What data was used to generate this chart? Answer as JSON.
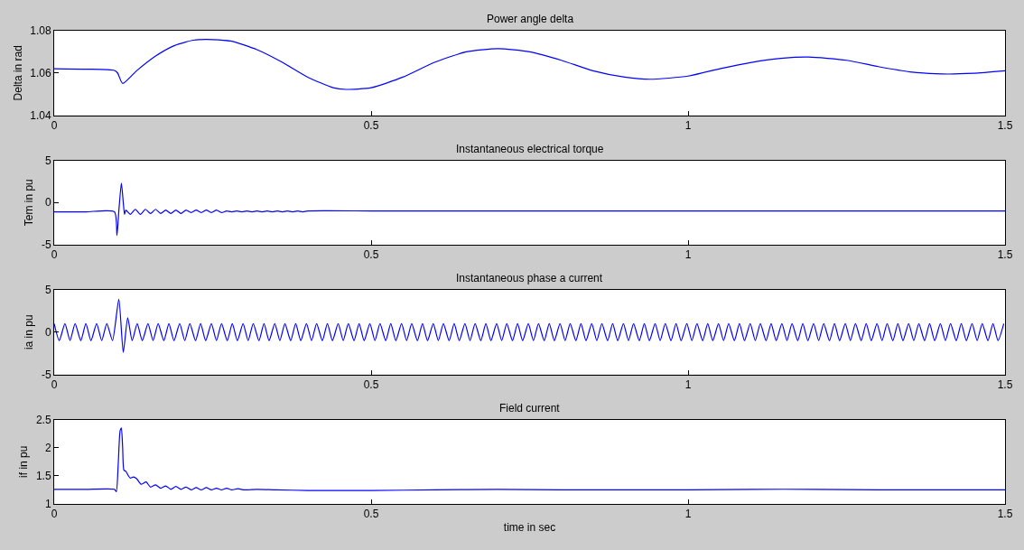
{
  "chart_data": [
    {
      "type": "line",
      "title": "Power angle delta",
      "ylabel": "Delta in rad",
      "xlim": [
        0,
        1.5
      ],
      "xticks": [
        0,
        0.5,
        1,
        1.5
      ],
      "ylim": [
        1.04,
        1.08
      ],
      "yticks": [
        1.04,
        1.06,
        1.08
      ],
      "series": [
        {
          "color": "#0000ff",
          "x": [
            0,
            0.05,
            0.095,
            0.1,
            0.108,
            0.13,
            0.16,
            0.19,
            0.22,
            0.25,
            0.28,
            0.32,
            0.36,
            0.4,
            0.44,
            0.46,
            0.5,
            0.55,
            0.6,
            0.65,
            0.7,
            0.75,
            0.8,
            0.85,
            0.9,
            0.94,
            1.0,
            1.05,
            1.1,
            1.15,
            1.19,
            1.25,
            1.3,
            1.35,
            1.4,
            1.45,
            1.5
          ],
          "values": [
            1.062,
            1.0618,
            1.0612,
            1.06,
            1.055,
            1.061,
            1.068,
            1.073,
            1.0755,
            1.0758,
            1.075,
            1.071,
            1.065,
            1.058,
            1.053,
            1.0522,
            1.053,
            1.058,
            1.065,
            1.07,
            1.0715,
            1.07,
            1.066,
            1.061,
            1.058,
            1.057,
            1.0585,
            1.062,
            1.065,
            1.067,
            1.0675,
            1.066,
            1.063,
            1.0605,
            1.0595,
            1.0598,
            1.061
          ]
        }
      ]
    },
    {
      "type": "line",
      "title": "Instantaneous electrical torque",
      "ylabel": "Tem in pu",
      "xlim": [
        0,
        1.5
      ],
      "xticks": [
        0,
        0.5,
        1,
        1.5
      ],
      "ylim": [
        -5,
        5
      ],
      "yticks": [
        -5,
        0,
        5
      ],
      "series": [
        {
          "color": "#0000ff",
          "x": [
            0,
            0.05,
            0.095,
            0.099,
            0.102,
            0.106,
            0.109,
            0.111,
            0.113,
            0.12,
            0.128,
            0.136,
            0.144,
            0.152,
            0.16,
            0.168,
            0.176,
            0.184,
            0.192,
            0.2,
            0.208,
            0.216,
            0.224,
            0.232,
            0.24,
            0.248,
            0.256,
            0.264,
            0.272,
            0.28,
            0.288,
            0.296,
            0.304,
            0.312,
            0.32,
            0.328,
            0.336,
            0.344,
            0.352,
            0.36,
            0.368,
            0.376,
            0.384,
            0.392,
            0.4,
            0.5,
            0.6,
            0.7,
            0.8,
            0.9,
            1.0,
            1.1,
            1.2,
            1.3,
            1.4,
            1.5
          ],
          "values": [
            -1.1,
            -1.1,
            -1.1,
            -3.9,
            -1,
            2.3,
            0,
            -1.4,
            -0.9,
            -1.4,
            -0.8,
            -1.4,
            -0.8,
            -1.3,
            -0.8,
            -1.3,
            -0.9,
            -1.3,
            -0.9,
            -1.3,
            -0.9,
            -1.2,
            -0.9,
            -1.2,
            -0.9,
            -1.2,
            -0.9,
            -1.2,
            -1,
            -1.1,
            -1,
            -1.1,
            -1,
            -1.1,
            -1,
            -1.1,
            -1,
            -1.1,
            -1,
            -1.1,
            -1,
            -1.1,
            -1,
            -1.1,
            -1,
            -1,
            -1,
            -1,
            -1,
            -1,
            -1,
            -1,
            -1,
            -1,
            -1,
            -1
          ]
        }
      ]
    },
    {
      "type": "line",
      "title": "Instantaneous phase a current",
      "ylabel": "ia in pu",
      "xlim": [
        0,
        1.5
      ],
      "xticks": [
        0,
        0.5,
        1,
        1.5
      ],
      "ylim": [
        -5,
        5
      ],
      "yticks": [
        -5,
        0,
        5
      ],
      "series": [
        {
          "color": "#0000ff",
          "x": [
            0,
            0.008,
            0.017,
            0.025,
            0.033,
            0.042,
            0.05,
            0.058,
            0.067,
            0.075,
            0.083,
            0.092,
            0.102,
            0.109,
            0.116,
            0.123,
            0.131,
            0.139,
            0.148,
            0.156,
            0.164,
            0.173,
            0.181,
            0.189,
            0.198,
            0.206,
            0.214,
            0.223,
            0.231,
            0.239,
            0.248,
            0.256,
            0.264,
            0.273,
            0.281,
            0.289,
            0.298,
            0.306,
            0.314,
            0.323,
            0.331,
            0.339,
            0.348,
            0.356,
            0.364,
            0.373,
            0.381,
            0.389,
            0.398,
            0.406,
            0.414,
            0.423,
            0.431,
            0.439,
            0.448,
            0.456,
            0.464,
            0.473,
            0.481,
            0.489,
            0.498,
            0.506,
            0.514,
            0.523,
            0.531,
            0.539,
            0.548,
            0.556,
            0.564,
            0.573,
            0.581,
            0.589,
            0.598,
            0.606,
            0.614,
            0.623,
            0.631,
            0.639,
            0.648,
            0.656,
            0.664,
            0.673,
            0.681,
            0.689,
            0.698,
            0.706,
            0.714,
            0.723,
            0.731,
            0.739,
            0.748,
            0.756,
            0.764,
            0.773,
            0.781,
            0.789,
            0.798,
            0.806,
            0.814,
            0.823,
            0.831,
            0.839,
            0.848,
            0.856,
            0.864,
            0.873,
            0.881,
            0.889,
            0.898,
            0.906,
            0.914,
            0.923,
            0.931,
            0.939,
            0.948,
            0.956,
            0.964,
            0.973,
            0.981,
            0.989,
            0.998,
            1.006,
            1.014,
            1.023,
            1.031,
            1.039,
            1.048,
            1.056,
            1.064,
            1.073,
            1.081,
            1.089,
            1.098,
            1.106,
            1.114,
            1.123,
            1.131,
            1.139,
            1.148,
            1.156,
            1.164,
            1.173,
            1.181,
            1.189,
            1.198,
            1.206,
            1.214,
            1.223,
            1.231,
            1.239,
            1.248,
            1.256,
            1.264,
            1.273,
            1.281,
            1.289,
            1.298,
            1.306,
            1.314,
            1.323,
            1.331,
            1.339,
            1.348,
            1.356,
            1.364,
            1.373,
            1.381,
            1.389,
            1.398,
            1.406,
            1.414,
            1.423,
            1.431,
            1.439,
            1.448,
            1.456,
            1.464,
            1.473,
            1.481,
            1.489,
            1.498
          ],
          "values": [
            1,
            -1,
            1,
            -1,
            1,
            -1,
            1,
            -1,
            1,
            -1,
            1,
            -1,
            3.9,
            -2.4,
            1.7,
            -1,
            1,
            -1,
            1,
            -1,
            1,
            -1,
            1,
            -1,
            1,
            -1,
            1,
            -1,
            1,
            -1,
            1,
            -1,
            1,
            -1,
            1,
            -1,
            1,
            -1,
            1,
            -1,
            1,
            -1,
            1,
            -1,
            1,
            -1,
            1,
            -1,
            1,
            -1,
            1,
            -1,
            1,
            -1,
            1,
            -1,
            1,
            -1,
            1,
            -1,
            1,
            -1,
            1,
            -1,
            1,
            -1,
            1,
            -1,
            1,
            -1,
            1,
            -1,
            1,
            -1,
            1,
            -1,
            1,
            -1,
            1,
            -1,
            1,
            -1,
            1,
            -1,
            1,
            -1,
            1,
            -1,
            1,
            -1,
            1,
            -1,
            1,
            -1,
            1,
            -1,
            1,
            -1,
            1,
            -1,
            1,
            -1,
            1,
            -1,
            1,
            -1,
            1,
            -1,
            1,
            -1,
            1,
            -1,
            1,
            -1,
            1,
            -1,
            1,
            -1,
            1,
            -1,
            1,
            -1,
            1,
            -1,
            1,
            -1,
            1,
            -1,
            1,
            -1,
            1,
            -1,
            1,
            -1,
            1,
            -1,
            1,
            -1,
            1,
            -1,
            1,
            -1,
            1,
            -1,
            1,
            -1,
            1,
            -1,
            1,
            -1,
            1,
            -1,
            1,
            -1,
            1,
            -1,
            1,
            -1,
            1,
            -1,
            1,
            -1,
            1,
            -1,
            1,
            -1,
            1,
            -1,
            1,
            -1,
            1,
            -1,
            1,
            -1,
            1,
            -1,
            1,
            -1,
            1,
            -1,
            1
          ]
        }
      ]
    },
    {
      "type": "line",
      "title": "Field current",
      "ylabel": "if in pu",
      "xlabel": "time in sec",
      "xlim": [
        0,
        1.5
      ],
      "xticks": [
        0,
        0.5,
        1,
        1.5
      ],
      "ylim": [
        1,
        2.5
      ],
      "yticks": [
        1,
        1.5,
        2,
        2.5
      ],
      "series": [
        {
          "color": "#0000ff",
          "x": [
            0,
            0.05,
            0.095,
            0.098,
            0.101,
            0.104,
            0.106,
            0.108,
            0.11,
            0.113,
            0.117,
            0.12,
            0.125,
            0.13,
            0.137,
            0.145,
            0.152,
            0.16,
            0.168,
            0.176,
            0.184,
            0.192,
            0.2,
            0.208,
            0.216,
            0.224,
            0.232,
            0.24,
            0.248,
            0.256,
            0.264,
            0.272,
            0.28,
            0.29,
            0.3,
            0.32,
            0.35,
            0.4,
            0.45,
            0.5,
            0.6,
            0.7,
            0.8,
            0.9,
            1.0,
            1.1,
            1.2,
            1.3,
            1.4,
            1.5
          ],
          "values": [
            1.26,
            1.26,
            1.26,
            1.22,
            1.7,
            2.3,
            2.35,
            2.0,
            1.6,
            1.58,
            1.5,
            1.46,
            1.48,
            1.45,
            1.35,
            1.39,
            1.3,
            1.34,
            1.28,
            1.32,
            1.26,
            1.31,
            1.26,
            1.3,
            1.25,
            1.29,
            1.25,
            1.29,
            1.25,
            1.28,
            1.25,
            1.28,
            1.25,
            1.27,
            1.25,
            1.26,
            1.25,
            1.24,
            1.24,
            1.24,
            1.25,
            1.26,
            1.25,
            1.25,
            1.25,
            1.26,
            1.26,
            1.25,
            1.25,
            1.25
          ]
        }
      ]
    }
  ]
}
